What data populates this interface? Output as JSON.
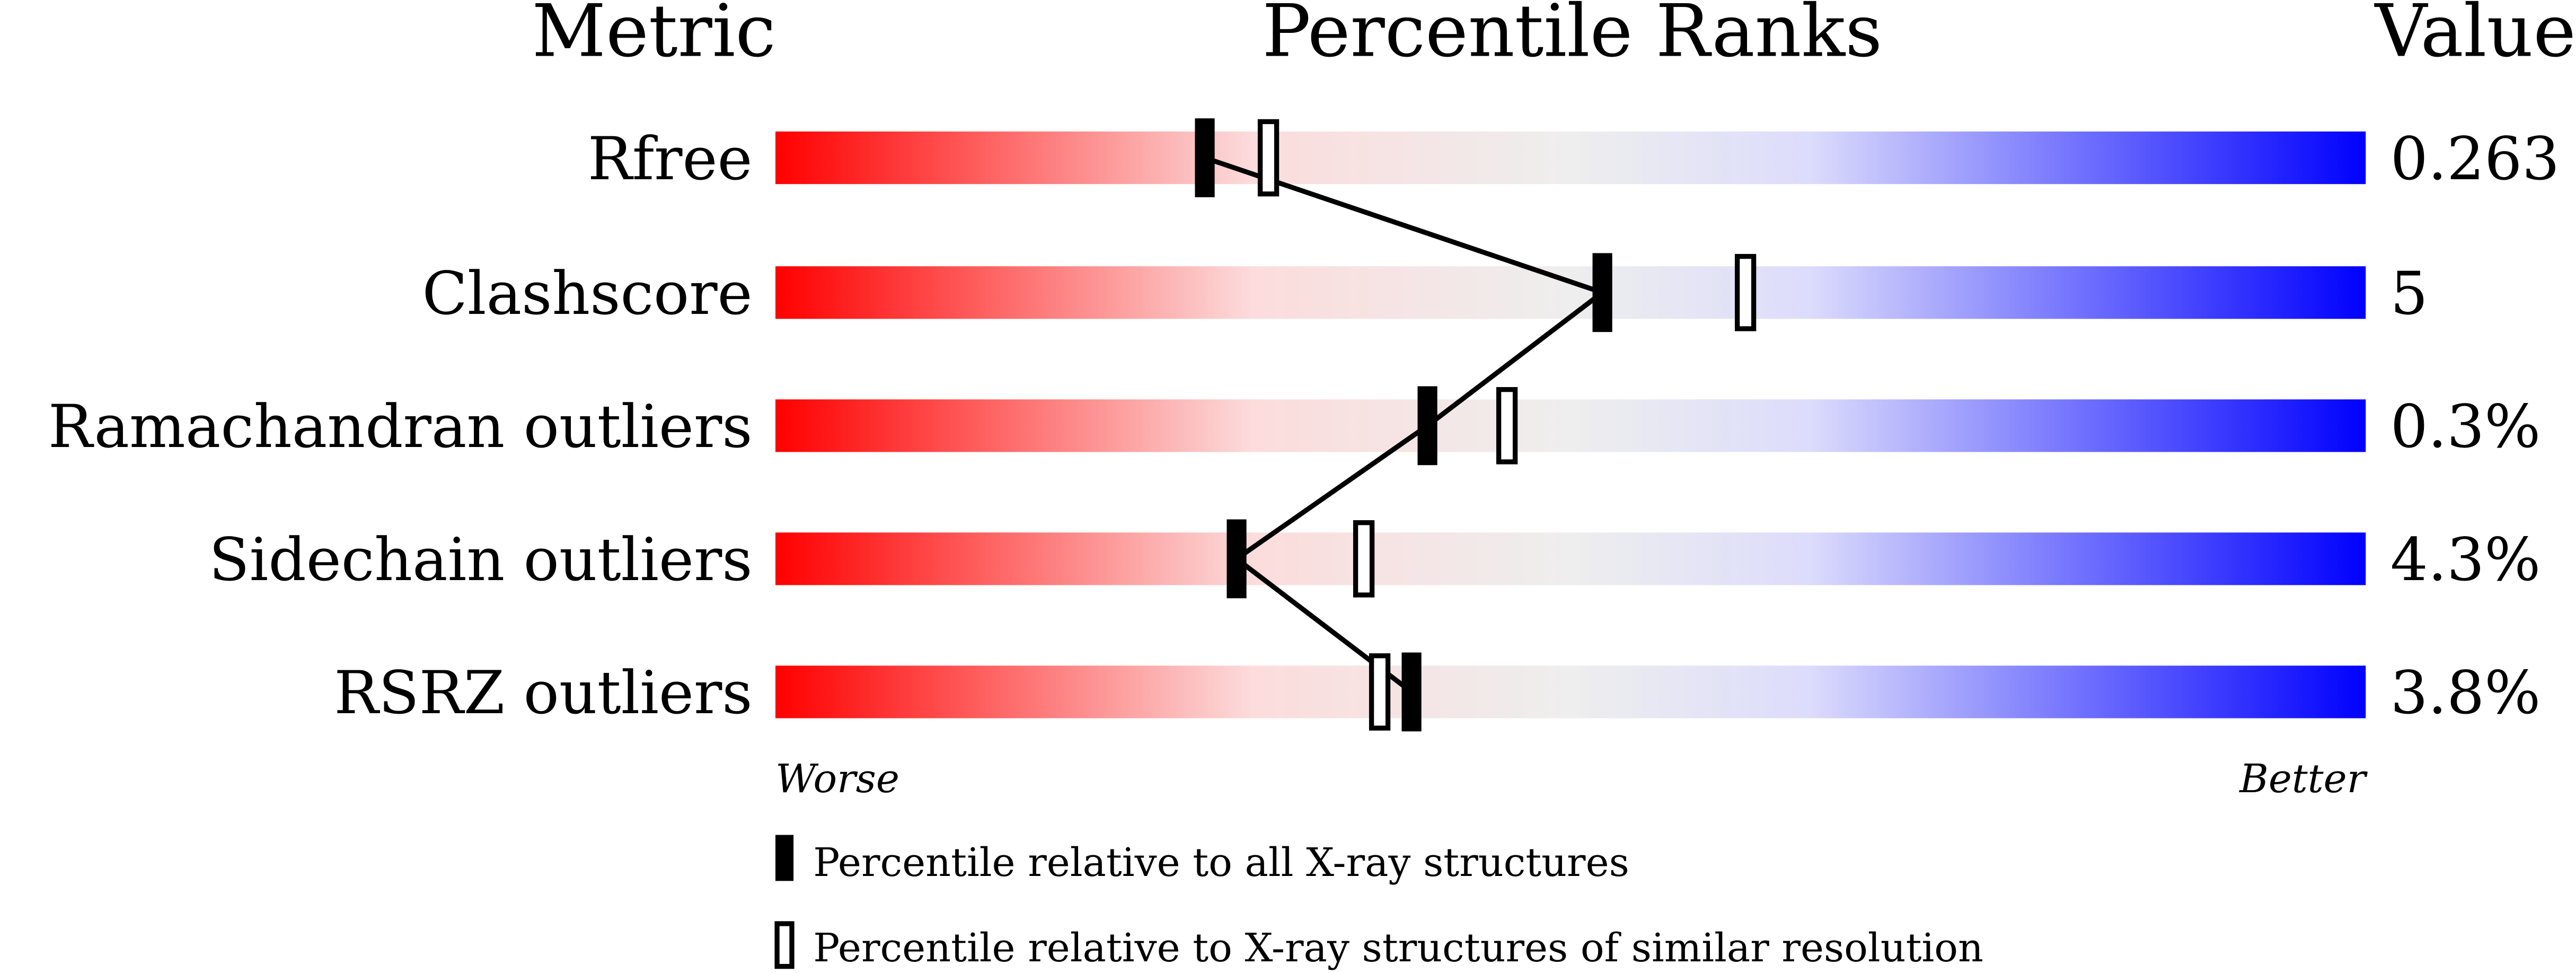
{
  "chart_data": {
    "type": "percentile-ranks",
    "headers": {
      "metric": "Metric",
      "ranks": "Percentile Ranks",
      "value": "Value"
    },
    "xlim": [
      0,
      100
    ],
    "axis_labels": {
      "left": "Worse",
      "right": "Better"
    },
    "rows": [
      {
        "metric": "Rfree",
        "value": "0.263",
        "percentile_all": 27,
        "percentile_similar": 31
      },
      {
        "metric": "Clashscore",
        "value": "5",
        "percentile_all": 52,
        "percentile_similar": 61
      },
      {
        "metric": "Ramachandran outliers",
        "value": "0.3%",
        "percentile_all": 41,
        "percentile_similar": 46
      },
      {
        "metric": "Sidechain outliers",
        "value": "4.3%",
        "percentile_all": 29,
        "percentile_similar": 37
      },
      {
        "metric": "RSRZ outliers",
        "value": "3.8%",
        "percentile_all": 40,
        "percentile_similar": 38
      }
    ],
    "legend": [
      {
        "marker": "filled",
        "label": "Percentile relative to all X-ray structures"
      },
      {
        "marker": "hollow",
        "label": "Percentile relative to X-ray structures of similar resolution"
      }
    ],
    "colors": {
      "worse": "#ff0000",
      "mid": "#eeeeee",
      "better": "#0000ff"
    }
  }
}
